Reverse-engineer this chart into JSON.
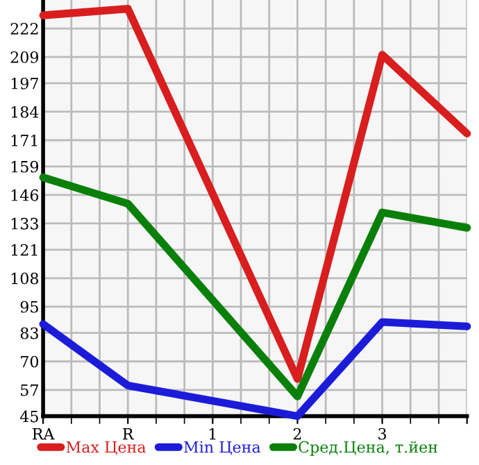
{
  "chart_data": {
    "type": "line",
    "categories": [
      "RA",
      "R",
      "1",
      "2",
      "3",
      null
    ],
    "series": [
      {
        "name": "Max Цена",
        "color": "#d81e1e",
        "values": [
          228,
          231,
          null,
          62,
          210,
          174
        ]
      },
      {
        "name": "Min Цена",
        "color": "#1c1cd8",
        "values": [
          87,
          59,
          null,
          45,
          88,
          86
        ]
      },
      {
        "name": "Сред.Цена, т.йен",
        "color": "#0a800a",
        "values": [
          154,
          142,
          null,
          54,
          138,
          131
        ]
      }
    ],
    "ylim": [
      45,
      235
    ],
    "yticks": [
      45,
      57,
      70,
      83,
      95,
      108,
      121,
      133,
      146,
      159,
      171,
      184,
      197,
      209,
      222
    ],
    "grid": true,
    "legend": "bottom",
    "marker": "none",
    "line_style": "solid"
  }
}
